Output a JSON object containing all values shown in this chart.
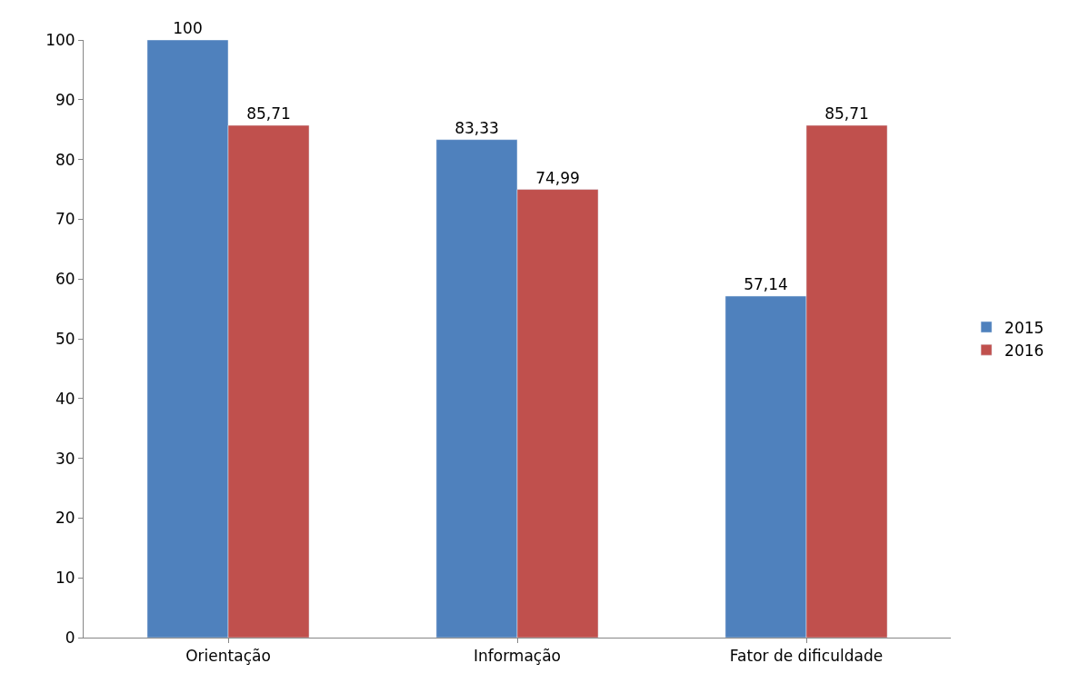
{
  "chart_data": {
    "type": "bar",
    "categories": [
      "Orientação",
      "Informação",
      "Fator de dificuldade"
    ],
    "series": [
      {
        "name": "2015",
        "color": "#4f81bd",
        "values": [
          100,
          83.33,
          57.14
        ],
        "value_labels": [
          "100",
          "83,33",
          "57,14"
        ]
      },
      {
        "name": "2016",
        "color": "#c0504d",
        "values": [
          85.71,
          74.99,
          85.71
        ],
        "value_labels": [
          "85,71",
          "74,99",
          "85,71"
        ]
      }
    ],
    "ylim": [
      0,
      100
    ],
    "yticks": [
      0,
      10,
      20,
      30,
      40,
      50,
      60,
      70,
      80,
      90,
      100
    ],
    "grid": false,
    "legend": "right"
  }
}
